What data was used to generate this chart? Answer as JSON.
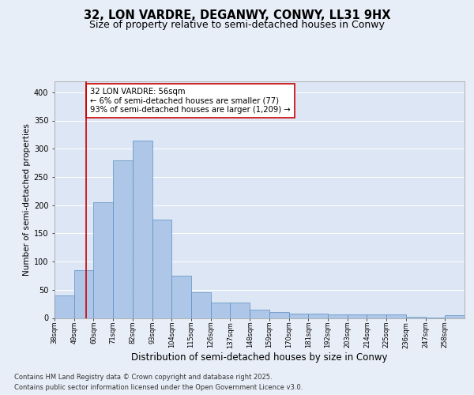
{
  "title1": "32, LON VARDRE, DEGANWY, CONWY, LL31 9HX",
  "title2": "Size of property relative to semi-detached houses in Conwy",
  "xlabel": "Distribution of semi-detached houses by size in Conwy",
  "ylabel": "Number of semi-detached properties",
  "footer1": "Contains HM Land Registry data © Crown copyright and database right 2025.",
  "footer2": "Contains public sector information licensed under the Open Government Licence v3.0.",
  "annotation_line1": "32 LON VARDRE: 56sqm",
  "annotation_line2": "← 6% of semi-detached houses are smaller (77)",
  "annotation_line3": "93% of semi-detached houses are larger (1,209) →",
  "property_size_sqm": 56,
  "bin_edges": [
    38,
    49,
    60,
    71,
    82,
    93,
    104,
    115,
    126,
    137,
    148,
    159,
    170,
    181,
    192,
    203,
    214,
    225,
    236,
    247,
    258
  ],
  "bin_labels": [
    "38sqm",
    "49sqm",
    "60sqm",
    "71sqm",
    "82sqm",
    "93sqm",
    "104sqm",
    "115sqm",
    "126sqm",
    "137sqm",
    "148sqm",
    "159sqm",
    "170sqm",
    "181sqm",
    "192sqm",
    "203sqm",
    "214sqm",
    "225sqm",
    "236sqm",
    "247sqm",
    "258sqm"
  ],
  "bar_heights": [
    40,
    85,
    205,
    280,
    315,
    175,
    75,
    45,
    28,
    28,
    15,
    11,
    8,
    8,
    6,
    6,
    6,
    6,
    2,
    1,
    5
  ],
  "bar_color": "#aec6e8",
  "bar_edge_color": "#5a8fc0",
  "bg_color": "#e8eef7",
  "plot_bg_color": "#dce6f4",
  "grid_color": "#ffffff",
  "vline_color": "#cc0000",
  "annotation_box_color": "#cc0000",
  "ylim": [
    0,
    420
  ],
  "yticks": [
    0,
    50,
    100,
    150,
    200,
    250,
    300,
    350,
    400
  ],
  "title1_fontsize": 10.5,
  "title2_fontsize": 9,
  "xlabel_fontsize": 8.5,
  "ylabel_fontsize": 7.5,
  "annotation_fontsize": 7.2,
  "footer_fontsize": 6.0
}
